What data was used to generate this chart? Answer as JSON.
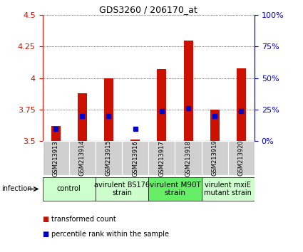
{
  "title": "GDS3260 / 206170_at",
  "samples": [
    "GSM213913",
    "GSM213914",
    "GSM213915",
    "GSM213916",
    "GSM213917",
    "GSM213918",
    "GSM213919",
    "GSM213920"
  ],
  "transformed_counts": [
    3.62,
    3.88,
    4.0,
    3.51,
    4.07,
    4.3,
    3.75,
    4.08
  ],
  "percentile_ranks": [
    10,
    20,
    20,
    10,
    24,
    26,
    20,
    24
  ],
  "ylim": [
    3.5,
    4.5
  ],
  "yticks": [
    3.5,
    3.75,
    4.0,
    4.25,
    4.5
  ],
  "ytick_labels": [
    "3.5",
    "3.75",
    "4",
    "4.25",
    "4.5"
  ],
  "y2lim": [
    0,
    100
  ],
  "y2ticks": [
    0,
    25,
    50,
    75,
    100
  ],
  "y2ticklabels": [
    "0%",
    "25%",
    "50%",
    "75%",
    "100%"
  ],
  "groups": [
    {
      "label": "control",
      "samples": [
        0,
        1
      ]
    },
    {
      "label": "avirulent BS176\nstrain",
      "samples": [
        2,
        3
      ]
    },
    {
      "label": "virulent M90T\nstrain",
      "samples": [
        4,
        5
      ]
    },
    {
      "label": "virulent mxiE\nmutant strain",
      "samples": [
        6,
        7
      ]
    }
  ],
  "group_colors": [
    "#ccffcc",
    "#ccffcc",
    "#66ee66",
    "#ccffcc"
  ],
  "bar_color": "#cc1100",
  "percentile_color": "#0000cc",
  "bar_width": 0.35,
  "infection_label": "infection",
  "legend_red": "transformed count",
  "legend_blue": "percentile rank within the sample",
  "axis_color_left": "#cc1100",
  "axis_color_right": "#0000cc",
  "tick_label_area_color": "#d0d0d0"
}
